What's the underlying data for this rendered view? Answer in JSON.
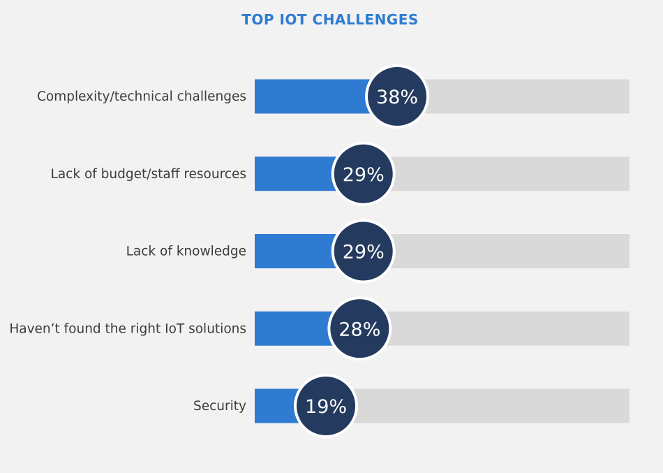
{
  "chart_data": {
    "type": "bar",
    "orientation": "horizontal",
    "title": "TOP IOT CHALLENGES",
    "categories": [
      "Complexity/technical challenges",
      "Lack of budget/staff resources",
      "Lack of knowledge",
      "Haven’t found the right IoT solutions",
      "Security"
    ],
    "values": [
      38,
      29,
      29,
      28,
      19
    ],
    "data_labels": [
      "38%",
      "29%",
      "29%",
      "28%",
      "19%"
    ],
    "xlim": [
      0,
      100
    ],
    "grid": false,
    "legend": "none",
    "colors": {
      "bar": "#2e7bd1",
      "track": "#d9d9d9",
      "badge": "#243a5e",
      "badge_border": "#ffffff",
      "title": "#2e7bd1"
    }
  }
}
